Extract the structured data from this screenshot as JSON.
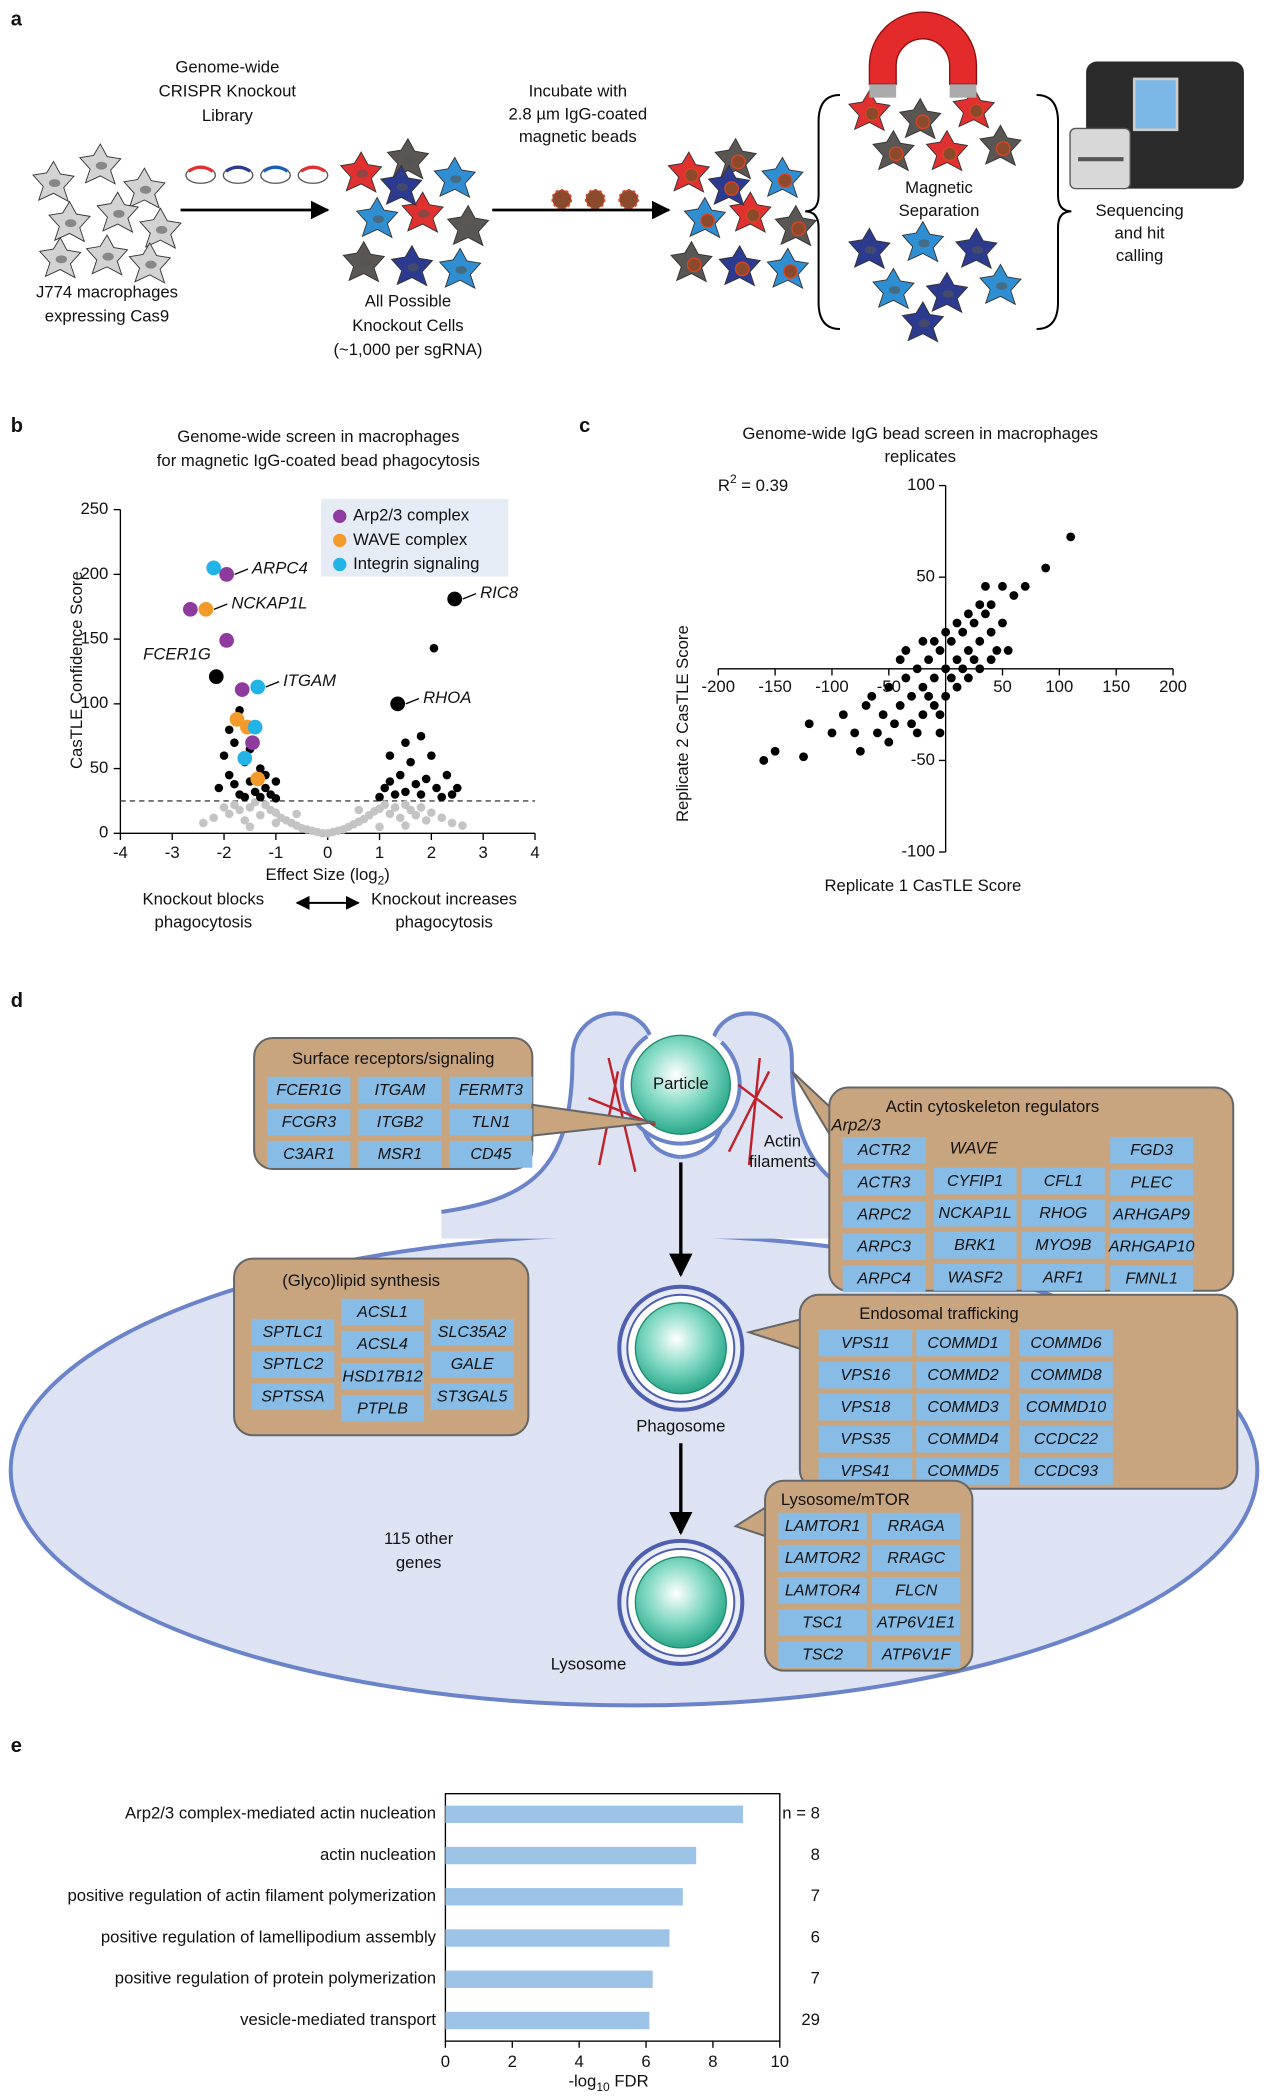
{
  "panel_labels": [
    "a",
    "b",
    "c",
    "d",
    "e"
  ],
  "workflow": {
    "start_label": [
      "J774 macrophages",
      "expressing Cas9"
    ],
    "library_label": [
      "Genome-wide",
      "CRISPR Knockout",
      "Library"
    ],
    "all_cells_label": [
      "All Possible",
      "Knockout Cells",
      "(~1,000 per sgRNA)"
    ],
    "incubate_label": [
      "Incubate with",
      "2.8 µm IgG-coated",
      "magnetic beads"
    ],
    "separation_label": [
      "Magnetic",
      "Separation"
    ],
    "sequencing_label": [
      "Sequencing",
      "and hit",
      "calling"
    ]
  },
  "chart_data": [
    {
      "type": "volcano",
      "title": [
        "Genome-wide screen in macrophages",
        "for magnetic IgG-coated bead phagocytosis"
      ],
      "xlabel": {
        "text": "Effect Size (log",
        "sub": "2",
        "end": ")"
      },
      "ylabel": "CasTLE Confidence Score",
      "xlim": [
        -4,
        4
      ],
      "xticks": [
        -4,
        -3,
        -2,
        -1,
        0,
        1,
        2,
        3,
        4
      ],
      "ylim": [
        0,
        250
      ],
      "yticks": [
        0,
        50,
        100,
        150,
        200,
        250
      ],
      "threshold": 25,
      "direction_labels": {
        "left": [
          "Knockout blocks",
          "phagocytosis"
        ],
        "right": [
          "Knockout increases",
          "phagocytosis"
        ]
      },
      "points": [
        {
          "color": "#c4c4c4",
          "x": [
            -2.4,
            -2.2,
            -2.0,
            -1.9,
            -1.8,
            -1.7,
            -1.6,
            -1.5,
            -1.4,
            -1.3,
            -1.2,
            -1.1,
            -1.0,
            -0.9,
            -0.8,
            -0.7,
            -0.6,
            -0.5,
            -0.4,
            -0.3,
            -0.2,
            -0.1,
            0,
            0.1,
            0.2,
            0.3,
            0.4,
            0.5,
            0.6,
            0.7,
            0.8,
            0.9,
            1.0,
            1.1,
            1.2,
            1.3,
            1.4,
            1.5,
            1.6,
            1.7,
            1.8,
            1.9,
            2.0,
            2.2,
            2.4,
            2.6,
            -1.5,
            -1.0,
            -0.6,
            0.6,
            1.0,
            1.5
          ],
          "y": [
            8,
            12,
            20,
            15,
            22,
            18,
            10,
            20,
            24,
            14,
            22,
            18,
            16,
            12,
            10,
            8,
            6,
            4,
            3,
            2,
            1,
            0,
            0,
            1,
            2,
            3,
            5,
            7,
            9,
            11,
            14,
            17,
            19,
            22,
            15,
            20,
            12,
            22,
            18,
            14,
            20,
            10,
            16,
            12,
            8,
            6,
            5,
            8,
            15,
            18,
            5,
            6
          ]
        },
        {
          "color": "#000000",
          "x": [
            -2.0,
            -1.9,
            -1.8,
            -1.7,
            -1.6,
            -1.5,
            -1.4,
            -1.3,
            -1.2,
            -1.1,
            -1.0,
            -1.9,
            -1.7,
            -1.8,
            -1.5,
            -1.3,
            -2.1,
            -1.6,
            -1.2,
            -1.0,
            1.0,
            1.1,
            1.2,
            1.3,
            1.4,
            1.5,
            1.6,
            1.7,
            1.8,
            1.9,
            2.0,
            2.1,
            2.2,
            2.3,
            2.4,
            1.5,
            1.8,
            2.05,
            1.2,
            2.5
          ],
          "y": [
            60,
            45,
            38,
            30,
            55,
            40,
            32,
            28,
            35,
            30,
            27,
            80,
            95,
            70,
            65,
            50,
            35,
            28,
            45,
            40,
            28,
            35,
            40,
            30,
            45,
            32,
            55,
            38,
            30,
            42,
            60,
            35,
            28,
            45,
            30,
            70,
            75,
            143,
            60,
            35
          ]
        },
        {
          "color": "#000000",
          "size": "large",
          "x": [
            -2.15,
            2.45,
            1.35
          ],
          "y": [
            121,
            181,
            100
          ]
        }
      ],
      "series": [
        {
          "name": "Arp2/3 complex",
          "color": "#8e3a9e",
          "x": [
            -1.95,
            -2.65,
            -1.95,
            -1.65,
            -1.45
          ],
          "y": [
            200,
            173,
            149,
            111,
            70
          ]
        },
        {
          "name": "WAVE complex",
          "color": "#f39a2b",
          "x": [
            -2.35,
            -1.75,
            -1.55,
            -1.35
          ],
          "y": [
            173,
            88,
            82,
            42
          ]
        },
        {
          "name": "Integrin signaling",
          "color": "#22b4e6",
          "x": [
            -2.2,
            -1.35,
            -1.4,
            -1.6
          ],
          "y": [
            205,
            113,
            82,
            58
          ]
        }
      ],
      "annotations": [
        {
          "text": "ARPC4",
          "x": -1.95,
          "y": 200,
          "side": "right"
        },
        {
          "text": "NCKAP1L",
          "x": -2.35,
          "y": 173,
          "side": "right"
        },
        {
          "text": "FCER1G",
          "x": -2.15,
          "y": 121,
          "side": "above"
        },
        {
          "text": "ITGAM",
          "x": -1.35,
          "y": 113,
          "side": "right"
        },
        {
          "text": "RIC8",
          "x": 2.45,
          "y": 181,
          "side": "right"
        },
        {
          "text": "RHOA",
          "x": 1.35,
          "y": 100,
          "side": "right"
        }
      ]
    },
    {
      "type": "scatter",
      "title": [
        "Genome-wide IgG bead screen in macrophages",
        "replicates"
      ],
      "xlabel": "Replicate 1 CasTLE Score",
      "ylabel": "Replicate 2 CasTLE Score",
      "r_squared": {
        "symbol": "R",
        "sup": "2",
        "text": " = 0.39"
      },
      "axes_cross_at_origin": true,
      "xlim": [
        -200,
        200
      ],
      "xticks": [
        -200,
        -150,
        -100,
        -50,
        50,
        100,
        150,
        200
      ],
      "ylim": [
        -100,
        100
      ],
      "yticks": [
        -100,
        -50,
        50,
        100
      ],
      "color": "#000000",
      "x": [
        -40,
        -30,
        -20,
        -10,
        0,
        10,
        20,
        30,
        40,
        -35,
        -25,
        -15,
        -5,
        5,
        15,
        25,
        35,
        -45,
        -30,
        -20,
        -10,
        0,
        10,
        20,
        30,
        40,
        -50,
        -40,
        -20,
        0,
        20,
        40,
        50,
        45,
        -55,
        -60,
        -50,
        -25,
        5,
        15,
        -5,
        -15,
        25,
        30,
        10,
        -10,
        60,
        70,
        88,
        110,
        -70,
        -80,
        -90,
        -100,
        -125,
        -150,
        -160,
        -120,
        -75,
        -65,
        50,
        35,
        55,
        -35,
        -5
      ],
      "y": [
        -20,
        -15,
        -10,
        -5,
        0,
        5,
        10,
        15,
        20,
        -5,
        0,
        5,
        10,
        15,
        20,
        25,
        30,
        -30,
        -30,
        -25,
        -20,
        -15,
        -10,
        -5,
        0,
        5,
        -10,
        5,
        15,
        20,
        30,
        35,
        25,
        10,
        -25,
        -35,
        -40,
        -35,
        -5,
        0,
        -25,
        -15,
        5,
        35,
        25,
        15,
        40,
        45,
        55,
        72,
        -20,
        -35,
        -25,
        -35,
        -48,
        -45,
        -50,
        -30,
        -45,
        -15,
        45,
        45,
        10,
        10,
        -35
      ]
    },
    {
      "type": "barh",
      "categories": [
        "Arp2/3 complex-mediated actin nucleation",
        "actin nucleation",
        "positive regulation of actin filament polymerization",
        "positive regulation of lamellipodium assembly",
        "positive regulation of protein polymerization",
        "vesicle-mediated transport"
      ],
      "values": [
        8.9,
        7.5,
        7.1,
        6.7,
        6.2,
        6.1
      ],
      "count_labels": [
        "n = 8",
        "8",
        "7",
        "6",
        "7",
        "29"
      ],
      "color": "#9dc3e6",
      "xlabel": {
        "text": "-log",
        "sub": "10",
        "end": " FDR"
      },
      "xlim": [
        0,
        10
      ],
      "xticks": [
        0,
        2,
        4,
        6,
        8,
        10
      ]
    }
  ],
  "pathway": {
    "particle": "Particle",
    "actin_label": [
      "Actin",
      "filaments"
    ],
    "phagosome": "Phagosome",
    "lysosome": "Lysosome",
    "other_genes": [
      "115 other",
      "genes"
    ],
    "groups": [
      {
        "title": "Surface receptors/signaling",
        "columns": [
          [
            "FCER1G",
            "FCGR3",
            "C3AR1"
          ],
          [
            "ITGAM",
            "ITGB2",
            "MSR1"
          ],
          [
            "FERMT3",
            "TLN1",
            "CD45"
          ]
        ]
      },
      {
        "title": "Actin cytoskeleton regulators",
        "subheads": [
          "Arp2/3",
          "WAVE"
        ],
        "columns": [
          [
            "ACTR2",
            "ACTR3",
            "ARPC2",
            "ARPC3",
            "ARPC4"
          ],
          [
            "CYFIP1",
            "NCKAP1L",
            "BRK1",
            "WASF2"
          ],
          [
            "CFL1",
            "RHOG",
            "MYO9B",
            "ARF1"
          ],
          [
            "FGD3",
            "PLEC",
            "ARHGAP9",
            "ARHGAP10",
            "FMNL1"
          ]
        ]
      },
      {
        "title": "(Glyco)lipid synthesis",
        "columns": [
          [
            "SPTLC1",
            "SPTLC2",
            "SPTSSA"
          ],
          [
            "ACSL1",
            "ACSL4",
            "HSD17B12",
            "PTPLB"
          ],
          [
            "SLC35A2",
            "GALE",
            "ST3GAL5"
          ]
        ]
      },
      {
        "title": "Endosomal trafficking",
        "columns": [
          [
            "VPS11",
            "VPS16",
            "VPS18",
            "VPS35",
            "VPS41"
          ],
          [
            "COMMD1",
            "COMMD2",
            "COMMD3",
            "COMMD4",
            "COMMD5"
          ],
          [
            "COMMD6",
            "COMMD8",
            "COMMD10",
            "CCDC22",
            "CCDC93"
          ]
        ]
      },
      {
        "title": "Lysosome/mTOR",
        "columns": [
          [
            "LAMTOR1",
            "LAMTOR2",
            "LAMTOR4",
            "TSC1",
            "TSC2"
          ],
          [
            "RRAGA",
            "RRAGC",
            "FLCN",
            "ATP6V1E1",
            "ATP6V1F"
          ]
        ]
      }
    ]
  }
}
